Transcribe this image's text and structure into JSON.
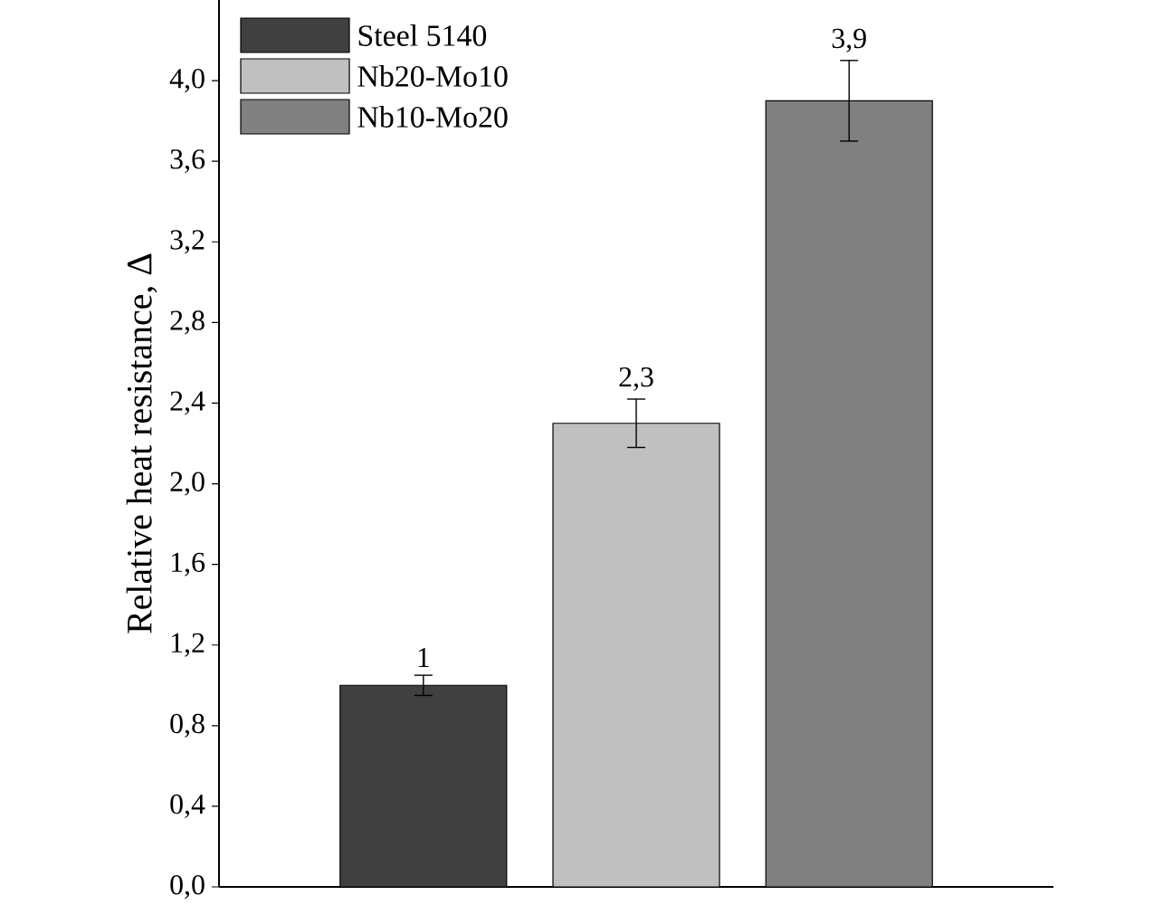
{
  "chart_data": {
    "type": "bar",
    "ylabel": "Relative heat resistance, Δ",
    "categories": [
      null,
      null,
      null
    ],
    "series": [
      {
        "name": "Steel 5140",
        "color": "#404040",
        "values": [
          1,
          null,
          null
        ],
        "errors": [
          0.05,
          null,
          null
        ],
        "value_labels": [
          "1",
          null,
          null
        ]
      },
      {
        "name": "Nb20-Mo10",
        "color": "#c0c0c0",
        "values": [
          null,
          2.3,
          null
        ],
        "errors": [
          null,
          0.12,
          null
        ],
        "value_labels": [
          null,
          "2,3",
          null
        ]
      },
      {
        "name": "Nb10-Mo20",
        "color": "#808080",
        "values": [
          null,
          null,
          3.9
        ],
        "errors": [
          null,
          null,
          0.2
        ],
        "value_labels": [
          null,
          null,
          "3,9"
        ]
      }
    ],
    "ylim": [
      0,
      4.4
    ],
    "yticks": [
      {
        "value": 0,
        "label": "0,0"
      },
      {
        "value": 0.4,
        "label": "0,4"
      },
      {
        "value": 0.8,
        "label": "0,8"
      },
      {
        "value": 1.2,
        "label": "1,2"
      },
      {
        "value": 1.6,
        "label": "1,6"
      },
      {
        "value": 2.0,
        "label": "2,0"
      },
      {
        "value": 2.4,
        "label": "2,4"
      },
      {
        "value": 2.8,
        "label": "2,8"
      },
      {
        "value": 3.2,
        "label": "3,2"
      },
      {
        "value": 3.6,
        "label": "3,6"
      },
      {
        "value": 4.0,
        "label": "4,0"
      }
    ],
    "legend": "top left",
    "tick_labels": "y"
  }
}
